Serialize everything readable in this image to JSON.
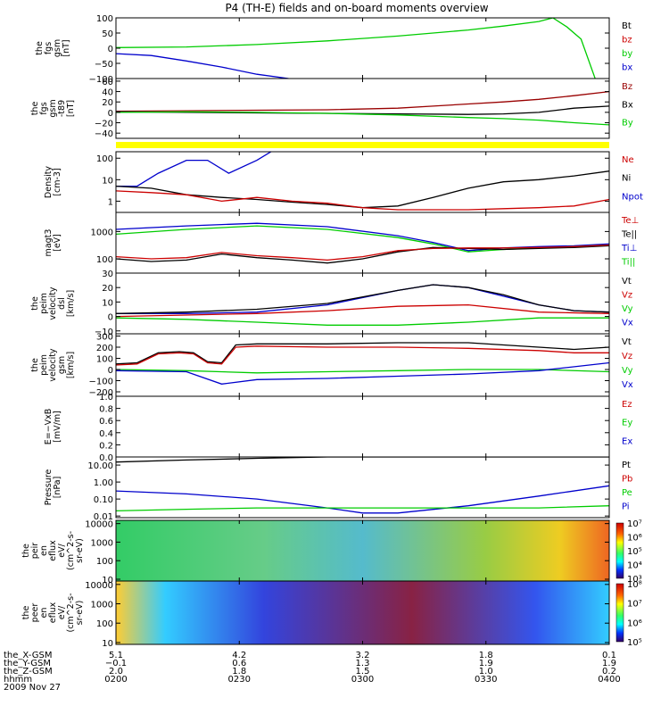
{
  "title": "P4 (TH-E) fields and on-board moments overview",
  "chart_data": [
    {
      "type": "line",
      "ylabel": [
        "the",
        "fgs",
        "gsm",
        "[nT]"
      ],
      "ylim": [
        -100,
        100
      ],
      "yticks": [
        "100",
        "50",
        "0",
        "−50",
        "−100"
      ],
      "ytick_values": [
        100,
        50,
        0,
        -50,
        -100
      ],
      "legend": [
        {
          "label": "Bt",
          "color": "#000000"
        },
        {
          "label": "bz",
          "color": "#cc0000"
        },
        {
          "label": "by",
          "color": "#00cc00"
        },
        {
          "label": "bx",
          "color": "#0000cc"
        }
      ],
      "series": [
        {
          "name": "by",
          "color": "#00cc00",
          "x": [
            0,
            10,
            20,
            30,
            40,
            50,
            55,
            60,
            62,
            64,
            66,
            68
          ],
          "y": [
            2,
            4,
            12,
            24,
            40,
            60,
            73,
            88,
            100,
            70,
            30,
            -100
          ]
        },
        {
          "name": "bx",
          "color": "#0000cc",
          "x": [
            0,
            5,
            10,
            15,
            20,
            24.5
          ],
          "y": [
            -18,
            -24,
            -42,
            -62,
            -86,
            -100
          ]
        }
      ]
    },
    {
      "type": "line",
      "ylabel": [
        "the",
        "fgs",
        "gsm",
        "-t89",
        "[nT]"
      ],
      "ylim": [
        -50,
        65
      ],
      "yticks": [
        "60",
        "40",
        "20",
        "0",
        "−20",
        "−40"
      ],
      "ytick_values": [
        60,
        40,
        20,
        0,
        -20,
        -40
      ],
      "legend": [
        {
          "label": "Bz",
          "color": "#990000"
        },
        {
          "label": "Bx",
          "color": "#000000"
        },
        {
          "label": "By",
          "color": "#00cc00"
        }
      ],
      "series": [
        {
          "name": "Bz",
          "color": "#990000",
          "x": [
            0,
            10,
            20,
            30,
            40,
            45,
            50,
            55,
            60,
            65,
            70
          ],
          "y": [
            2,
            3,
            4,
            5,
            8,
            12,
            16,
            20,
            25,
            32,
            40
          ]
        },
        {
          "name": "Bx",
          "color": "#000000",
          "x": [
            0,
            10,
            20,
            30,
            40,
            50,
            55,
            60,
            65,
            70
          ],
          "y": [
            1,
            0,
            -1,
            -2,
            -3,
            -4,
            -3,
            0,
            8,
            12
          ]
        },
        {
          "name": "By",
          "color": "#00cc00",
          "x": [
            0,
            10,
            20,
            30,
            40,
            50,
            55,
            60,
            65,
            70
          ],
          "y": [
            0,
            1,
            0,
            -2,
            -5,
            -10,
            -12,
            -15,
            -20,
            -24
          ]
        }
      ]
    },
    {
      "type": "line",
      "yscale": "log",
      "ylabel": [
        "Density",
        "[cm-3]"
      ],
      "ylim": [
        0.3,
        200
      ],
      "yticks": [
        "100",
        "10",
        "1"
      ],
      "ytick_values": [
        100,
        10,
        1
      ],
      "legend": [
        {
          "label": "Ne",
          "color": "#cc0000"
        },
        {
          "label": "Ni",
          "color": "#000000"
        },
        {
          "label": "Npot",
          "color": "#0000cc"
        }
      ],
      "series": [
        {
          "name": "Npot",
          "color": "#0000cc",
          "x": [
            0,
            3,
            6,
            10,
            13,
            16,
            20,
            22
          ],
          "y": [
            5,
            5,
            20,
            80,
            80,
            20,
            80,
            200
          ]
        },
        {
          "name": "Ni",
          "color": "#000000",
          "x": [
            0,
            5,
            10,
            15,
            20,
            25,
            30,
            35,
            40,
            45,
            50,
            55,
            60,
            65,
            70
          ],
          "y": [
            5,
            4,
            2,
            1.5,
            1.2,
            0.9,
            0.7,
            0.5,
            0.6,
            1.5,
            4,
            8,
            10,
            15,
            25
          ]
        },
        {
          "name": "Ne",
          "color": "#cc0000",
          "x": [
            0,
            5,
            10,
            15,
            20,
            25,
            30,
            35,
            40,
            45,
            50,
            55,
            60,
            65,
            70
          ],
          "y": [
            3,
            2.5,
            2,
            1,
            1.5,
            1,
            0.8,
            0.5,
            0.4,
            0.4,
            0.4,
            0.45,
            0.5,
            0.6,
            1.2
          ]
        }
      ]
    },
    {
      "type": "line",
      "yscale": "log",
      "ylabel": [
        "magt3",
        "[eV]"
      ],
      "ylim": [
        30,
        5000
      ],
      "yticks": [
        "1000",
        "100"
      ],
      "ytick_values": [
        1000,
        100
      ],
      "legend": [
        {
          "label": "Te⊥",
          "color": "#cc0000"
        },
        {
          "label": "Te||",
          "color": "#000000"
        },
        {
          "label": "Ti⊥",
          "color": "#0000cc"
        },
        {
          "label": "Ti||",
          "color": "#00cc00"
        }
      ],
      "series": [
        {
          "name": "Ti⊥",
          "color": "#0000cc",
          "x": [
            0,
            10,
            20,
            30,
            40,
            45,
            50,
            55,
            60,
            65,
            70
          ],
          "y": [
            1200,
            1600,
            2000,
            1500,
            700,
            400,
            200,
            250,
            280,
            300,
            350
          ]
        },
        {
          "name": "Ti||",
          "color": "#00cc00",
          "x": [
            0,
            10,
            20,
            30,
            40,
            45,
            50,
            55,
            60,
            65,
            70
          ],
          "y": [
            800,
            1200,
            1600,
            1200,
            600,
            350,
            180,
            220,
            250,
            280,
            320
          ]
        },
        {
          "name": "Te||",
          "color": "#000000",
          "x": [
            0,
            5,
            10,
            15,
            20,
            25,
            30,
            35,
            40,
            45,
            50,
            55,
            60,
            65,
            70
          ],
          "y": [
            100,
            80,
            90,
            150,
            110,
            90,
            70,
            100,
            180,
            260,
            240,
            220,
            240,
            260,
            300
          ]
        },
        {
          "name": "Te⊥",
          "color": "#cc0000",
          "x": [
            0,
            5,
            10,
            15,
            20,
            25,
            30,
            35,
            40,
            45,
            50,
            55,
            60,
            65,
            70
          ],
          "y": [
            120,
            100,
            110,
            170,
            130,
            110,
            90,
            120,
            200,
            240,
            250,
            250,
            260,
            280,
            320
          ]
        }
      ]
    },
    {
      "type": "line",
      "ylabel": [
        "the",
        "peim",
        "velocity",
        "dsl",
        "[km/s]"
      ],
      "ylim": [
        -12,
        30
      ],
      "yticks": [
        "30",
        "20",
        "10",
        "0",
        "−10"
      ],
      "ytick_values": [
        30,
        20,
        10,
        0,
        -10
      ],
      "legend": [
        {
          "label": "Vt",
          "color": "#000000"
        },
        {
          "label": "Vz",
          "color": "#cc0000"
        },
        {
          "label": "Vy",
          "color": "#00cc00"
        },
        {
          "label": "Vx",
          "color": "#0000cc"
        }
      ],
      "series": [
        {
          "name": "Vx",
          "color": "#0000cc",
          "x": [
            0,
            10,
            20,
            30,
            40,
            45,
            50,
            55,
            60,
            65,
            70
          ],
          "y": [
            2,
            2,
            3,
            8,
            18,
            22,
            20,
            14,
            8,
            4,
            3
          ]
        },
        {
          "name": "Vt",
          "color": "#000000",
          "x": [
            0,
            10,
            20,
            30,
            40,
            45,
            50,
            55,
            60,
            65,
            70
          ],
          "y": [
            2,
            3,
            5,
            9,
            18,
            22,
            20,
            15,
            8,
            4,
            3
          ]
        },
        {
          "name": "Vz",
          "color": "#cc0000",
          "x": [
            0,
            10,
            20,
            30,
            40,
            50,
            60,
            70
          ],
          "y": [
            0,
            1,
            2,
            4,
            7,
            8,
            3,
            2
          ]
        },
        {
          "name": "Vy",
          "color": "#00cc00",
          "x": [
            0,
            10,
            20,
            30,
            40,
            50,
            60,
            70
          ],
          "y": [
            -1,
            -2,
            -4,
            -6,
            -6,
            -4,
            -1,
            -1
          ]
        }
      ]
    },
    {
      "type": "line",
      "ylabel": [
        "the",
        "peim",
        "velocity",
        "gsm",
        "[km/s]"
      ],
      "ylim": [
        -240,
        320
      ],
      "yticks": [
        "300",
        "200",
        "100",
        "0",
        "−100",
        "−200"
      ],
      "ytick_values": [
        300,
        200,
        100,
        0,
        -100,
        -200
      ],
      "legend": [
        {
          "label": "Vt",
          "color": "#000000"
        },
        {
          "label": "Vz",
          "color": "#cc0000"
        },
        {
          "label": "Vy",
          "color": "#00cc00"
        },
        {
          "label": "Vx",
          "color": "#0000cc"
        }
      ],
      "series": [
        {
          "name": "Vt",
          "color": "#000000",
          "x": [
            0,
            3,
            6,
            9,
            11,
            13,
            15,
            17,
            20,
            30,
            40,
            50,
            60,
            65,
            70
          ],
          "y": [
            50,
            60,
            150,
            160,
            150,
            70,
            60,
            220,
            230,
            230,
            240,
            240,
            200,
            180,
            200
          ]
        },
        {
          "name": "Vz",
          "color": "#cc0000",
          "x": [
            0,
            3,
            6,
            9,
            11,
            13,
            15,
            17,
            20,
            30,
            40,
            50,
            60,
            65,
            70
          ],
          "y": [
            40,
            50,
            140,
            150,
            140,
            60,
            50,
            200,
            210,
            200,
            200,
            190,
            170,
            150,
            150
          ]
        },
        {
          "name": "Vy",
          "color": "#00cc00",
          "x": [
            0,
            10,
            20,
            30,
            40,
            50,
            60,
            70
          ],
          "y": [
            0,
            -10,
            -30,
            -20,
            -10,
            0,
            0,
            -20
          ]
        },
        {
          "name": "Vx",
          "color": "#0000cc",
          "x": [
            0,
            10,
            15,
            20,
            30,
            40,
            50,
            60,
            70
          ],
          "y": [
            -10,
            -20,
            -130,
            -90,
            -80,
            -60,
            -40,
            -10,
            60
          ]
        }
      ]
    },
    {
      "type": "line",
      "ylabel": [
        "E=−VxB",
        "[mV/m]"
      ],
      "ylim": [
        0,
        1
      ],
      "yticks": [
        "1.0",
        "0.8",
        "0.6",
        "0.4",
        "0.2",
        "0.0"
      ],
      "ytick_values": [
        1,
        0.8,
        0.6,
        0.4,
        0.2,
        0
      ],
      "legend": [
        {
          "label": "Ez",
          "color": "#cc0000"
        },
        {
          "label": "Ey",
          "color": "#00cc00"
        },
        {
          "label": "Ex",
          "color": "#0000cc"
        }
      ],
      "series": []
    },
    {
      "type": "line",
      "yscale": "log",
      "ylabel": [
        "Pressure",
        "[nPa]"
      ],
      "ylim": [
        0.008,
        30
      ],
      "yticks": [
        "10.00",
        "1.00",
        "0.10",
        "0.01"
      ],
      "ytick_values": [
        10,
        1,
        0.1,
        0.01
      ],
      "legend": [
        {
          "label": "Pt",
          "color": "#000000"
        },
        {
          "label": "Pb",
          "color": "#cc0000"
        },
        {
          "label": "Pe",
          "color": "#00cc00"
        },
        {
          "label": "Pi",
          "color": "#0000cc"
        }
      ],
      "series": [
        {
          "name": "Pt",
          "color": "#000000",
          "x": [
            0,
            10,
            20,
            30,
            40,
            50,
            60,
            70
          ],
          "y": [
            15,
            20,
            25,
            30,
            30,
            30,
            30,
            30
          ]
        },
        {
          "name": "Pi",
          "color": "#0000cc",
          "x": [
            0,
            10,
            20,
            30,
            35,
            40,
            50,
            60,
            70
          ],
          "y": [
            0.3,
            0.2,
            0.1,
            0.03,
            0.015,
            0.015,
            0.04,
            0.15,
            0.6
          ]
        },
        {
          "name": "Pe",
          "color": "#00cc00",
          "x": [
            0,
            10,
            20,
            30,
            40,
            50,
            60,
            70
          ],
          "y": [
            0.02,
            0.025,
            0.03,
            0.03,
            0.03,
            0.03,
            0.03,
            0.04
          ]
        }
      ]
    },
    {
      "type": "heatmap",
      "ylabel": [
        "the",
        "peir",
        "en",
        "eflux",
        "eV/",
        "(cm^2-s-",
        "sr-eV)"
      ],
      "yscale": "log",
      "ylim": [
        8,
        15000
      ],
      "yticks": [
        "10000",
        "1000",
        "100",
        "10"
      ],
      "ytick_values": [
        10000,
        1000,
        100,
        10
      ],
      "colorbar": [
        "10⁷",
        "10⁶",
        "10⁵",
        "10⁴",
        "10³"
      ],
      "colorbar_range": [
        1000,
        10000000
      ]
    },
    {
      "type": "heatmap",
      "ylabel": [
        "the",
        "peer",
        "en",
        "eflux",
        "eV/",
        "(cm^2-s-",
        "sr-eV)"
      ],
      "yscale": "log",
      "ylim": [
        8,
        15000
      ],
      "yticks": [
        "10000",
        "1000",
        "100",
        "10"
      ],
      "ytick_values": [
        10000,
        1000,
        100,
        10
      ],
      "colorbar": [
        "10⁸",
        "10⁷",
        "10⁶",
        "10⁵"
      ],
      "colorbar_range": [
        100000,
        100000000
      ]
    }
  ],
  "xaxis": {
    "rows": [
      "the_X-GSM",
      "the_Y-GSM",
      "the_Z-GSM",
      "hhmm",
      "2009 Nov 27"
    ],
    "ticks": [
      {
        "X": "5.1",
        "Y": "−0.1",
        "Z": "2.0",
        "t": "0200"
      },
      {
        "X": "4.2",
        "Y": "0.6",
        "Z": "1.8",
        "t": "0230"
      },
      {
        "X": "3.2",
        "Y": "1.3",
        "Z": "1.5",
        "t": "0300"
      },
      {
        "X": "1.8",
        "Y": "1.9",
        "Z": "1.0",
        "t": "0330"
      },
      {
        "X": "0.1",
        "Y": "1.9",
        "Z": "0.2",
        "t": "0400"
      }
    ]
  },
  "status_bar_color": "#ffff00"
}
